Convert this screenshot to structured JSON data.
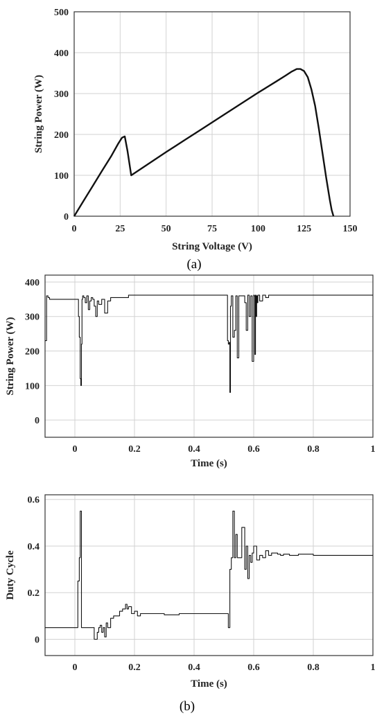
{
  "chart_data": [
    {
      "id": "a",
      "type": "line",
      "caption": "(a)",
      "xlabel": "String Voltage (V)",
      "ylabel": "String Power (W)",
      "xlim": [
        0,
        150
      ],
      "ylim": [
        0,
        500
      ],
      "xticks": [
        "0",
        "25",
        "50",
        "75",
        "100",
        "125",
        "150"
      ],
      "yticks": [
        "0",
        "100",
        "200",
        "300",
        "400",
        "500"
      ],
      "grid": true,
      "series": [
        {
          "x": [
            0,
            5,
            10,
            15,
            20,
            24,
            26,
            27.5,
            29,
            31,
            40,
            50,
            60,
            70,
            80,
            90,
            100,
            110,
            115,
            118,
            121,
            123,
            125,
            127,
            129,
            131,
            133,
            135,
            137,
            139,
            140,
            141
          ],
          "y": [
            0,
            37,
            73,
            110,
            146,
            178,
            192,
            195,
            160,
            100,
            127,
            157,
            186,
            215,
            244,
            273,
            302,
            330,
            344,
            353,
            360,
            360,
            355,
            340,
            310,
            270,
            215,
            155,
            95,
            40,
            15,
            0
          ]
        }
      ]
    },
    {
      "id": "b-power",
      "type": "line",
      "xlabel": "Time (s)",
      "ylabel": "String Power (W)",
      "xlim": [
        -0.1,
        1
      ],
      "ylim": [
        -50,
        420
      ],
      "xticks": [
        "0",
        "0.2",
        "0.4",
        "0.6",
        "0.8",
        "1"
      ],
      "yticks": [
        "0",
        "100",
        "200",
        "300",
        "400"
      ],
      "grid": true,
      "series": [
        {
          "x": [
            -0.1,
            -0.095,
            -0.09,
            -0.085,
            0.0,
            0.01,
            0.012,
            0.015,
            0.018,
            0.02,
            0.022,
            0.024,
            0.026,
            0.03,
            0.035,
            0.04,
            0.045,
            0.05,
            0.055,
            0.06,
            0.065,
            0.07,
            0.075,
            0.08,
            0.09,
            0.1,
            0.11,
            0.12,
            0.15,
            0.18,
            0.2,
            0.3,
            0.4,
            0.5,
            0.51,
            0.512,
            0.515,
            0.518,
            0.52,
            0.522,
            0.525,
            0.53,
            0.535,
            0.54,
            0.545,
            0.55,
            0.56,
            0.57,
            0.575,
            0.58,
            0.585,
            0.59,
            0.595,
            0.6,
            0.602,
            0.604,
            0.606,
            0.608,
            0.61,
            0.612,
            0.614,
            0.62,
            0.63,
            0.64,
            0.65,
            0.7,
            0.8,
            0.9,
            1.0
          ],
          "y": [
            230,
            360,
            355,
            350,
            350,
            350,
            300,
            240,
            120,
            100,
            220,
            350,
            360,
            355,
            340,
            360,
            320,
            345,
            355,
            350,
            330,
            300,
            345,
            335,
            350,
            310,
            345,
            355,
            355,
            362,
            362,
            362,
            362,
            362,
            362,
            230,
            220,
            225,
            80,
            330,
            360,
            240,
            260,
            360,
            180,
            360,
            360,
            340,
            260,
            362,
            300,
            360,
            170,
            362,
            360,
            190,
            362,
            300,
            360,
            340,
            362,
            345,
            362,
            355,
            362,
            362,
            362,
            362,
            362
          ]
        }
      ]
    },
    {
      "id": "b-duty",
      "type": "line",
      "caption": "(b)",
      "xlabel": "Time (s)",
      "ylabel": "Duty Cycle",
      "xlim": [
        -0.1,
        1
      ],
      "ylim": [
        -0.07,
        0.62
      ],
      "xticks": [
        "0",
        "0.2",
        "0.4",
        "0.6",
        "0.8",
        "1"
      ],
      "yticks": [
        "0",
        "0.2",
        "0.4",
        "0.6"
      ],
      "grid": true,
      "series": [
        {
          "x": [
            -0.1,
            0.005,
            0.01,
            0.015,
            0.018,
            0.022,
            0.025,
            0.03,
            0.06,
            0.065,
            0.07,
            0.075,
            0.08,
            0.085,
            0.09,
            0.095,
            0.1,
            0.105,
            0.11,
            0.12,
            0.13,
            0.14,
            0.15,
            0.16,
            0.17,
            0.175,
            0.18,
            0.19,
            0.2,
            0.21,
            0.22,
            0.25,
            0.3,
            0.35,
            0.4,
            0.45,
            0.5,
            0.51,
            0.515,
            0.52,
            0.525,
            0.53,
            0.535,
            0.54,
            0.545,
            0.55,
            0.56,
            0.57,
            0.575,
            0.58,
            0.585,
            0.59,
            0.595,
            0.6,
            0.61,
            0.62,
            0.63,
            0.64,
            0.65,
            0.66,
            0.67,
            0.68,
            0.69,
            0.7,
            0.72,
            0.75,
            0.8,
            0.9,
            1.0
          ],
          "y": [
            0.05,
            0.05,
            0.25,
            0.35,
            0.55,
            0.05,
            0.05,
            0.05,
            0.05,
            0.0,
            0.0,
            0.03,
            0.05,
            0.06,
            0.03,
            0.05,
            0.01,
            0.07,
            0.05,
            0.09,
            0.1,
            0.1,
            0.12,
            0.13,
            0.15,
            0.13,
            0.14,
            0.11,
            0.12,
            0.1,
            0.11,
            0.11,
            0.105,
            0.11,
            0.11,
            0.11,
            0.11,
            0.11,
            0.05,
            0.3,
            0.35,
            0.55,
            0.35,
            0.45,
            0.35,
            0.35,
            0.48,
            0.3,
            0.4,
            0.26,
            0.36,
            0.33,
            0.37,
            0.4,
            0.34,
            0.36,
            0.35,
            0.38,
            0.36,
            0.37,
            0.37,
            0.365,
            0.36,
            0.365,
            0.36,
            0.365,
            0.36,
            0.36,
            0.36
          ]
        }
      ]
    }
  ]
}
